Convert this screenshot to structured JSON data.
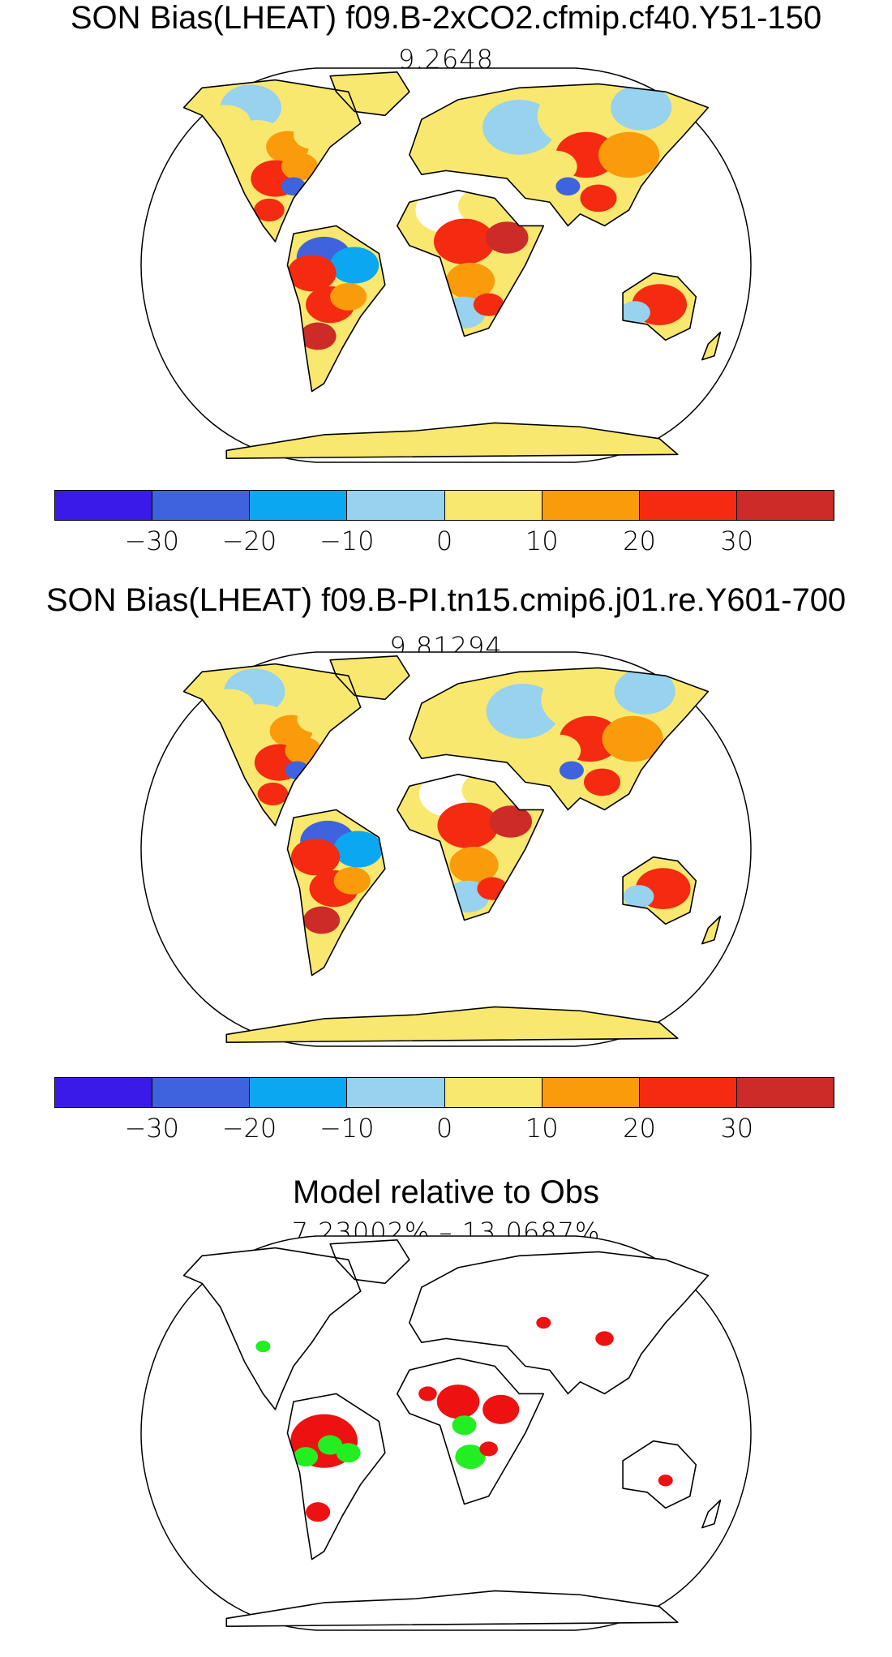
{
  "panels": [
    {
      "title": "SON Bias(LHEAT) f09.B-2xCO2.cfmip.cf40.Y51-150",
      "subtitle": "9.2648",
      "scheme": "bias1"
    },
    {
      "title": "SON Bias(LHEAT) f09.B-PI.tn15.cmip6.j01.re.Y601-700",
      "subtitle": "9.81294",
      "scheme": "bias2"
    },
    {
      "title": "Model relative to Obs",
      "subtitle": "7.23002% – 13.0687%",
      "scheme": "relative"
    }
  ],
  "colorbar": {
    "colors": [
      "#3a1ae8",
      "#3f63de",
      "#0ba7f0",
      "#97d2ef",
      "#f9e86f",
      "#f99b0b",
      "#f42b10",
      "#cc2b27"
    ],
    "tick_labels": [
      "−30",
      "−20",
      "−10",
      "0",
      "10",
      "20",
      "30"
    ]
  },
  "relative_colors": {
    "worse": "#ee1111",
    "better": "#22ee22"
  },
  "map": {
    "projection": "Robinson",
    "ocean": "#ffffff",
    "coastline": "#000000"
  }
}
